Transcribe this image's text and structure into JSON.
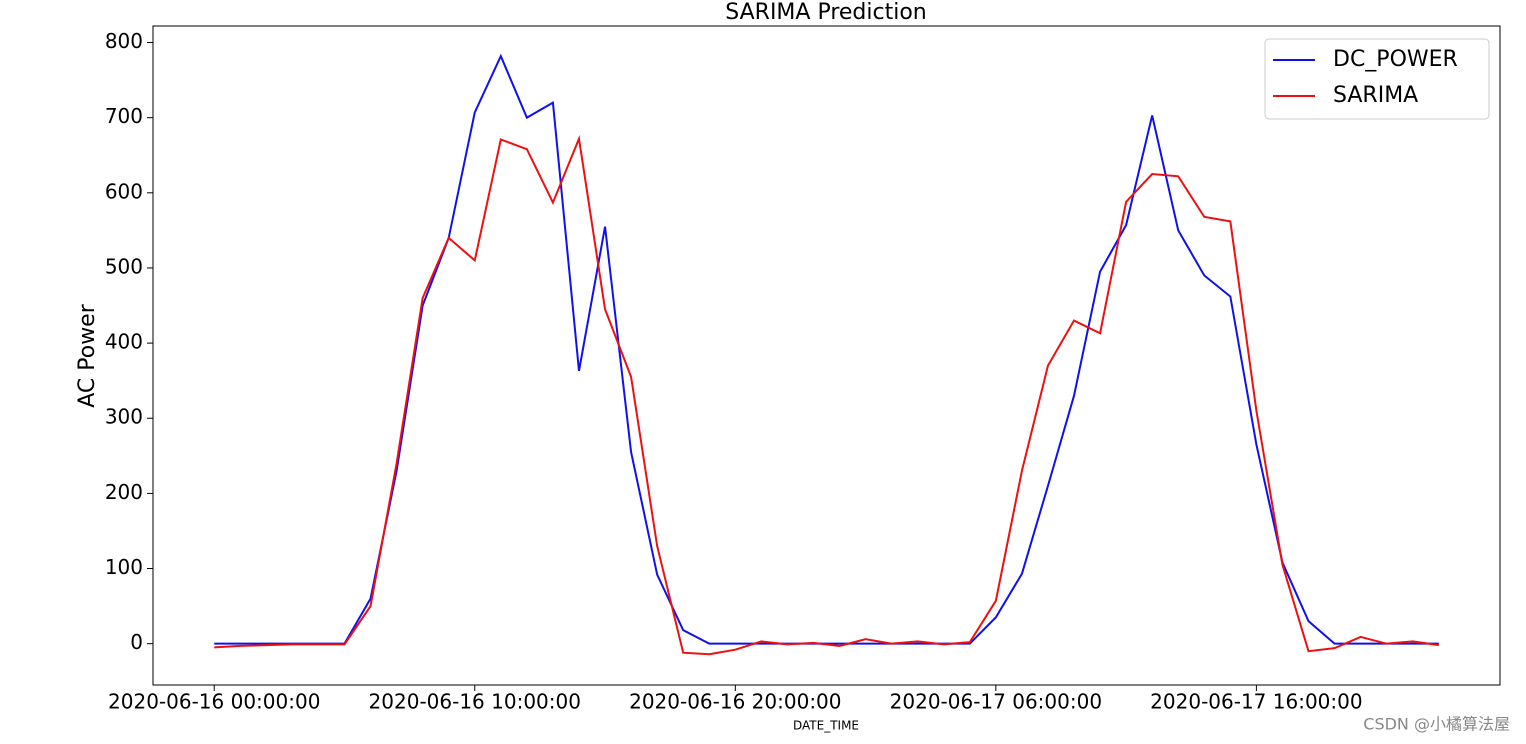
{
  "chart_data": {
    "type": "line",
    "title": "SARIMA Prediction",
    "x_label": "DATE_TIME",
    "y_label": "AC Power",
    "x": [
      "2020-06-16 00:00:00",
      "2020-06-16 01:00:00",
      "2020-06-16 02:00:00",
      "2020-06-16 03:00:00",
      "2020-06-16 04:00:00",
      "2020-06-16 05:00:00",
      "2020-06-16 06:00:00",
      "2020-06-16 07:00:00",
      "2020-06-16 08:00:00",
      "2020-06-16 09:00:00",
      "2020-06-16 10:00:00",
      "2020-06-16 11:00:00",
      "2020-06-16 12:00:00",
      "2020-06-16 13:00:00",
      "2020-06-16 14:00:00",
      "2020-06-16 15:00:00",
      "2020-06-16 16:00:00",
      "2020-06-16 17:00:00",
      "2020-06-16 18:00:00",
      "2020-06-16 19:00:00",
      "2020-06-16 20:00:00",
      "2020-06-16 21:00:00",
      "2020-06-16 22:00:00",
      "2020-06-16 23:00:00",
      "2020-06-17 00:00:00",
      "2020-06-17 01:00:00",
      "2020-06-17 02:00:00",
      "2020-06-17 03:00:00",
      "2020-06-17 04:00:00",
      "2020-06-17 05:00:00",
      "2020-06-17 06:00:00",
      "2020-06-17 07:00:00",
      "2020-06-17 08:00:00",
      "2020-06-17 09:00:00",
      "2020-06-17 10:00:00",
      "2020-06-17 11:00:00",
      "2020-06-17 12:00:00",
      "2020-06-17 13:00:00",
      "2020-06-17 14:00:00",
      "2020-06-17 15:00:00",
      "2020-06-17 16:00:00",
      "2020-06-17 17:00:00",
      "2020-06-17 18:00:00",
      "2020-06-17 19:00:00",
      "2020-06-17 20:00:00",
      "2020-06-17 21:00:00",
      "2020-06-17 22:00:00",
      "2020-06-17 23:00:00"
    ],
    "series": [
      {
        "name": "DC_POWER",
        "color": "#1010ee",
        "values": [
          0,
          0,
          0,
          0,
          0,
          0,
          60,
          230,
          450,
          540,
          707,
          782,
          700,
          720,
          363,
          555,
          255,
          92,
          18,
          0,
          0,
          0,
          0,
          0,
          0,
          0,
          0,
          0,
          0,
          0,
          35,
          93,
          210,
          330,
          495,
          557,
          703,
          550,
          490,
          462,
          265,
          108,
          30,
          0,
          0,
          0,
          0,
          0
        ]
      },
      {
        "name": "SARIMA",
        "color": "#ee1010",
        "values": [
          -5,
          -3,
          -2,
          -1,
          -1,
          -1,
          50,
          240,
          460,
          540,
          510,
          671,
          658,
          587,
          672,
          445,
          355,
          130,
          -12,
          -14,
          -8,
          3,
          -1,
          1,
          -3,
          6,
          0,
          3,
          -1,
          2,
          57,
          230,
          370,
          430,
          413,
          588,
          625,
          622,
          568,
          562,
          310,
          105,
          -10,
          -6,
          9,
          0,
          3,
          -2
        ]
      }
    ],
    "xlim": [
      "2020-06-15 21:39:00",
      "2020-06-18 01:21:00"
    ],
    "xticks": [
      "2020-06-16 00:00:00",
      "2020-06-16 10:00:00",
      "2020-06-16 20:00:00",
      "2020-06-17 06:00:00",
      "2020-06-17 16:00:00"
    ],
    "ylim": [
      -55,
      822
    ],
    "yticks": [
      0,
      100,
      200,
      300,
      400,
      500,
      600,
      700,
      800
    ],
    "legend": "upper right",
    "watermark": "CSDN @小橘算法屋"
  }
}
